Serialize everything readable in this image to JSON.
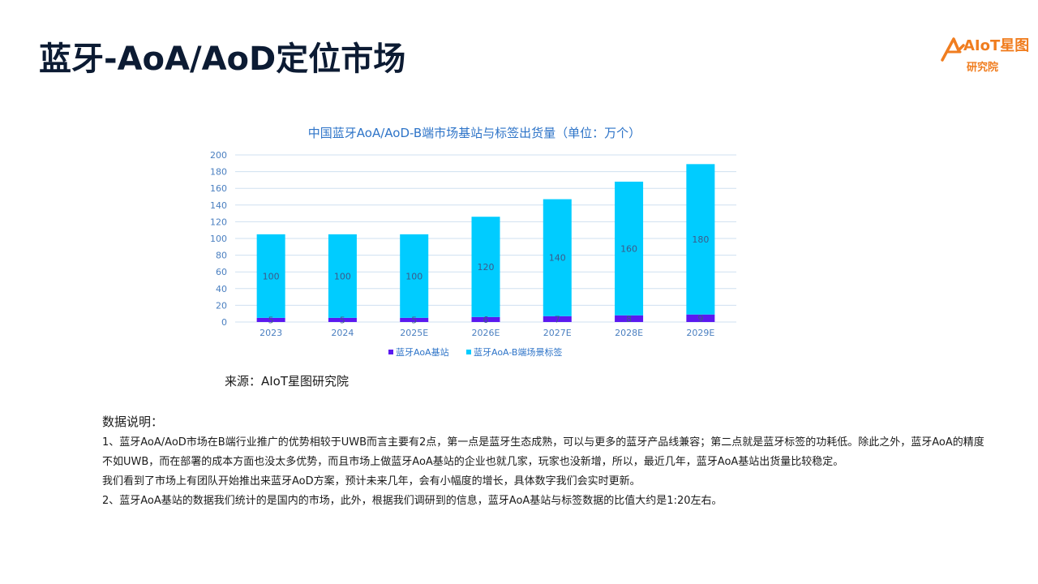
{
  "page": {
    "title": "蓝牙-AoA/AoD定位市场",
    "source": "来源：AIoT星图研究院"
  },
  "logo": {
    "name": "AIoT星图",
    "sub": "研究院",
    "color": "#f07d1f"
  },
  "notes": {
    "heading": "数据说明：",
    "paragraphs": [
      "1、蓝牙AoA/AoD市场在B端行业推广的优势相较于UWB而言主要有2点，第一点是蓝牙生态成熟，可以与更多的蓝牙产品线兼容；第二点就是蓝牙标签的功耗低。除此之外，蓝牙AoA的精度不如UWB，而在部署的成本方面也没太多优势，而且市场上做蓝牙AoA基站的企业也就几家，玩家也没新增，所以，最近几年，蓝牙AoA基站出货量比较稳定。",
      "我们看到了市场上有团队开始推出来蓝牙AoD方案，预计未来几年，会有小幅度的增长，具体数字我们会实时更新。",
      "2、蓝牙AoA基站的数据我们统计的是国内的市场，此外，根据我们调研到的信息，蓝牙AoA基站与标签数据的比值大约是1:20左右。"
    ]
  },
  "chart_data": {
    "type": "bar",
    "stacked": true,
    "title": "中国蓝牙AoA/AoD-B端市场基站与标签出货量（单位：万个）",
    "categories": [
      "2023",
      "2024",
      "2025E",
      "2026E",
      "2027E",
      "2028E",
      "2029E"
    ],
    "series": [
      {
        "name": "蓝牙AoA基站",
        "values": [
          5,
          5,
          5,
          6,
          7,
          8,
          9
        ],
        "color": "#5b19f0"
      },
      {
        "name": "蓝牙AoA-B端场景标签",
        "values": [
          100,
          100,
          100,
          120,
          140,
          160,
          180
        ],
        "color": "#00ccff"
      }
    ],
    "yticks": [
      "0",
      "20",
      "40",
      "60",
      "80",
      "100",
      "120",
      "140",
      "160",
      "180",
      "200"
    ],
    "ylim": [
      0,
      200
    ],
    "grid": true,
    "legend": "bottom"
  }
}
